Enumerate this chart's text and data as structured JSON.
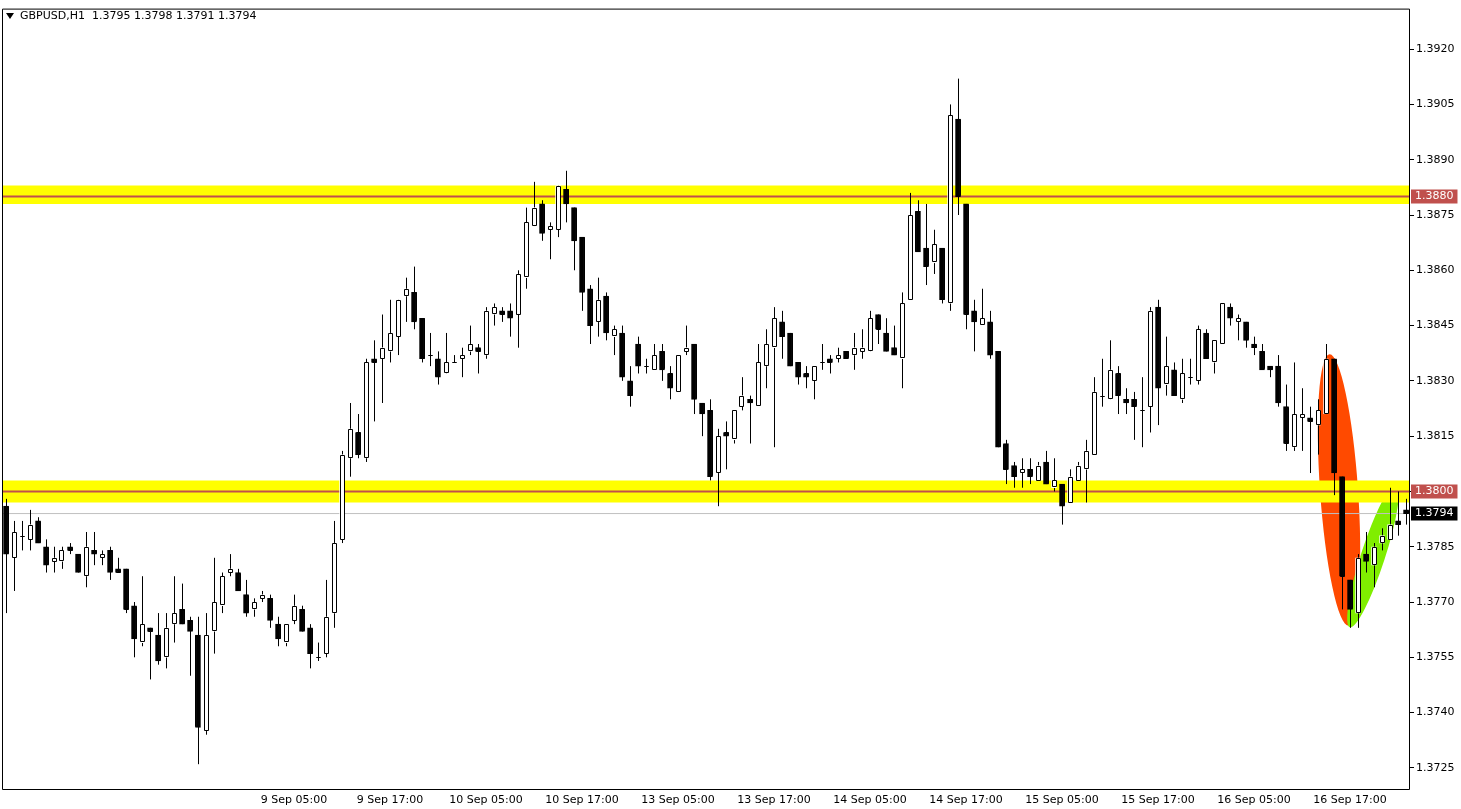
{
  "chart_data": {
    "type": "candlestick",
    "title": "GBPUSD,H1  1.3795 1.3798 1.3791 1.3794",
    "color": "#000000",
    "categories": [
      null,
      null,
      null,
      null,
      null,
      null,
      null,
      null,
      null,
      null,
      null,
      null,
      null,
      null,
      null,
      null,
      null,
      null,
      null,
      null,
      null,
      null,
      null,
      null,
      null,
      null,
      null,
      null,
      null,
      null,
      null,
      null,
      null,
      null,
      null,
      null,
      "9 Sep 05:00",
      null,
      null,
      null,
      null,
      null,
      null,
      null,
      null,
      null,
      null,
      null,
      "9 Sep 17:00",
      null,
      null,
      null,
      null,
      null,
      null,
      null,
      null,
      null,
      null,
      null,
      "10 Sep 05:00",
      null,
      null,
      null,
      null,
      null,
      null,
      null,
      null,
      null,
      null,
      null,
      "10 Sep 17:00",
      null,
      null,
      null,
      null,
      null,
      null,
      null,
      null,
      null,
      null,
      null,
      "13 Sep 05:00",
      null,
      null,
      null,
      null,
      null,
      null,
      null,
      null,
      null,
      null,
      null,
      "13 Sep 17:00",
      null,
      null,
      null,
      null,
      null,
      null,
      null,
      null,
      null,
      null,
      null,
      "14 Sep 05:00",
      null,
      null,
      null,
      null,
      null,
      null,
      null,
      null,
      null,
      null,
      null,
      "14 Sep 17:00",
      null,
      null,
      null,
      null,
      null,
      null,
      null,
      null,
      null,
      null,
      null,
      "15 Sep 05:00",
      null,
      null,
      null,
      null,
      null,
      null,
      null,
      null,
      null,
      null,
      null,
      "15 Sep 17:00",
      null,
      null,
      null,
      null,
      null,
      null,
      null,
      null,
      null,
      null,
      null,
      "16 Sep 05:00",
      null,
      null,
      null,
      null,
      null,
      null,
      null,
      null,
      null,
      null,
      null,
      "16 Sep 17:00",
      null,
      null,
      null,
      null,
      null,
      null,
      null
    ],
    "ohlc": [
      [
        1.3796,
        1.3798,
        1.3767,
        1.3783
      ],
      [
        1.3782,
        1.3792,
        1.3773,
        1.3789
      ],
      [
        1.3788,
        1.3792,
        1.3784,
        1.3788
      ],
      [
        1.3787,
        1.3795,
        1.3784,
        1.3791
      ],
      [
        1.3792,
        1.3793,
        1.3786,
        1.3786
      ],
      [
        1.3785,
        1.3787,
        1.3778,
        1.378
      ],
      [
        1.3781,
        1.3785,
        1.3778,
        1.3782
      ],
      [
        1.3781,
        1.3785,
        1.3779,
        1.3784
      ],
      [
        1.3785,
        1.3786,
        1.3783,
        1.3784
      ],
      [
        1.3783,
        1.3783,
        1.3778,
        1.3778
      ],
      [
        1.3777,
        1.3789,
        1.3774,
        1.3785
      ],
      [
        1.3784,
        1.3789,
        1.378,
        1.3783
      ],
      [
        1.3782,
        1.3784,
        1.378,
        1.3783
      ],
      [
        1.3784,
        1.3785,
        1.3776,
        1.3778
      ],
      [
        1.3779,
        1.3782,
        1.3778,
        1.3778
      ],
      [
        1.3779,
        1.3779,
        1.3767,
        1.3768
      ],
      [
        1.3769,
        1.377,
        1.3755,
        1.376
      ],
      [
        1.3759,
        1.3777,
        1.3758,
        1.3764
      ],
      [
        1.3763,
        1.3763,
        1.3749,
        1.3762
      ],
      [
        1.3761,
        1.3767,
        1.3753,
        1.3754
      ],
      [
        1.3755,
        1.3767,
        1.3752,
        1.3763
      ],
      [
        1.3764,
        1.3777,
        1.3759,
        1.3767
      ],
      [
        1.3768,
        1.3775,
        1.3764,
        1.3764
      ],
      [
        1.3765,
        1.3766,
        1.375,
        1.3762
      ],
      [
        1.3761,
        1.3766,
        1.3726,
        1.3736
      ],
      [
        1.3735,
        1.3767,
        1.3734,
        1.3761
      ],
      [
        1.3762,
        1.3782,
        1.3756,
        1.377
      ],
      [
        1.3769,
        1.3778,
        1.3767,
        1.3777
      ],
      [
        1.3778,
        1.3783,
        1.3777,
        1.3779
      ],
      [
        1.3778,
        1.3779,
        1.3773,
        1.3773
      ],
      [
        1.3772,
        1.3776,
        1.3766,
        1.3767
      ],
      [
        1.3768,
        1.3771,
        1.3766,
        1.377
      ],
      [
        1.3771,
        1.3773,
        1.377,
        1.3772
      ],
      [
        1.3771,
        1.3772,
        1.3763,
        1.3765
      ],
      [
        1.3764,
        1.3766,
        1.3758,
        1.376
      ],
      [
        1.3759,
        1.3764,
        1.3758,
        1.3764
      ],
      [
        1.3765,
        1.3772,
        1.3764,
        1.3769
      ],
      [
        1.3768,
        1.3769,
        1.3762,
        1.3762
      ],
      [
        1.3763,
        1.3764,
        1.3752,
        1.3756
      ],
      [
        1.3755,
        1.3759,
        1.3754,
        1.3755
      ],
      [
        1.3756,
        1.3776,
        1.3755,
        1.3766
      ],
      [
        1.3767,
        1.3792,
        1.3763,
        1.3786
      ],
      [
        1.3787,
        1.3811,
        1.3786,
        1.381
      ],
      [
        1.3809,
        1.3824,
        1.3804,
        1.3817
      ],
      [
        1.3816,
        1.3821,
        1.3809,
        1.381
      ],
      [
        1.3809,
        1.3836,
        1.3808,
        1.3835
      ],
      [
        1.3836,
        1.3841,
        1.3819,
        1.3835
      ],
      [
        1.3836,
        1.3848,
        1.3824,
        1.3839
      ],
      [
        1.3838,
        1.3852,
        1.3835,
        1.3843
      ],
      [
        1.3842,
        1.3852,
        1.3837,
        1.3852
      ],
      [
        1.3853,
        1.3858,
        1.3846,
        1.3855
      ],
      [
        1.3854,
        1.3861,
        1.3844,
        1.3846
      ],
      [
        1.3847,
        1.3847,
        1.3835,
        1.3836
      ],
      [
        1.3837,
        1.3843,
        1.3834,
        1.3837
      ],
      [
        1.3836,
        1.3838,
        1.3829,
        1.3831
      ],
      [
        1.3832,
        1.3843,
        1.3832,
        1.3835
      ],
      [
        1.3835,
        1.3837,
        1.3835,
        1.3835
      ],
      [
        1.3836,
        1.3839,
        1.3831,
        1.3837
      ],
      [
        1.3838,
        1.3845,
        1.3837,
        1.384
      ],
      [
        1.3839,
        1.384,
        1.3832,
        1.3838
      ],
      [
        1.3837,
        1.385,
        1.3836,
        1.3849
      ],
      [
        1.3848,
        1.3851,
        1.3845,
        1.385
      ],
      [
        1.3849,
        1.385,
        1.3846,
        1.3848
      ],
      [
        1.3849,
        1.3851,
        1.3842,
        1.3847
      ],
      [
        1.3848,
        1.386,
        1.3839,
        1.3859
      ],
      [
        1.3858,
        1.3877,
        1.3855,
        1.3873
      ],
      [
        1.3872,
        1.3884,
        1.3872,
        1.3877
      ],
      [
        1.3878,
        1.3879,
        1.3868,
        1.387
      ],
      [
        1.3871,
        1.3873,
        1.3863,
        1.3872
      ],
      [
        1.3871,
        1.3883,
        1.3869,
        1.3883
      ],
      [
        1.3882,
        1.3887,
        1.3873,
        1.3878
      ],
      [
        1.3877,
        1.3877,
        1.386,
        1.3868
      ],
      [
        1.3869,
        1.3869,
        1.3849,
        1.3854
      ],
      [
        1.3855,
        1.3856,
        1.384,
        1.3845
      ],
      [
        1.3846,
        1.3858,
        1.3842,
        1.3852
      ],
      [
        1.3853,
        1.3854,
        1.3841,
        1.3843
      ],
      [
        1.3842,
        1.3845,
        1.3837,
        1.3844
      ],
      [
        1.3843,
        1.3845,
        1.383,
        1.3831
      ],
      [
        1.383,
        1.3834,
        1.3823,
        1.3826
      ],
      [
        1.384,
        1.3842,
        1.3832,
        1.3834
      ],
      [
        1.3834,
        1.3836,
        1.3832,
        1.3834
      ],
      [
        1.3833,
        1.384,
        1.3833,
        1.3837
      ],
      [
        1.3838,
        1.384,
        1.383,
        1.3833
      ],
      [
        1.3832,
        1.3834,
        1.3825,
        1.3828
      ],
      [
        1.3827,
        1.3837,
        1.3827,
        1.3837
      ],
      [
        1.3838,
        1.3845,
        1.3837,
        1.3839
      ],
      [
        1.384,
        1.384,
        1.3821,
        1.3825
      ],
      [
        1.3824,
        1.3824,
        1.3815,
        1.3821
      ],
      [
        1.3822,
        1.3825,
        1.3803,
        1.3804
      ],
      [
        1.3805,
        1.3817,
        1.3796,
        1.3815
      ],
      [
        1.3816,
        1.3819,
        1.3806,
        1.3815
      ],
      [
        1.3814,
        1.3822,
        1.3813,
        1.3822
      ],
      [
        1.3823,
        1.3831,
        1.3822,
        1.3826
      ],
      [
        1.3825,
        1.3826,
        1.3813,
        1.3824
      ],
      [
        1.3823,
        1.384,
        1.3823,
        1.3835
      ],
      [
        1.3834,
        1.3844,
        1.3828,
        1.384
      ],
      [
        1.3839,
        1.385,
        1.3812,
        1.3847
      ],
      [
        1.3846,
        1.3849,
        1.3836,
        1.3842
      ],
      [
        1.3843,
        1.3843,
        1.3834,
        1.3834
      ],
      [
        1.3835,
        1.3835,
        1.3829,
        1.3831
      ],
      [
        1.3832,
        1.3834,
        1.3828,
        1.3831
      ],
      [
        1.383,
        1.3834,
        1.3825,
        1.3834
      ],
      [
        1.3835,
        1.384,
        1.3833,
        1.3835
      ],
      [
        1.3836,
        1.3837,
        1.3832,
        1.3835
      ],
      [
        1.3836,
        1.3839,
        1.3835,
        1.3837
      ],
      [
        1.3838,
        1.3838,
        1.3836,
        1.3836
      ],
      [
        1.3837,
        1.3843,
        1.3833,
        1.3839
      ],
      [
        1.3838,
        1.3844,
        1.3836,
        1.3839
      ],
      [
        1.3838,
        1.3849,
        1.3838,
        1.3847
      ],
      [
        1.3848,
        1.3848,
        1.384,
        1.3844
      ],
      [
        1.3843,
        1.3847,
        1.3838,
        1.3838
      ],
      [
        1.3839,
        1.3845,
        1.3837,
        1.3837
      ],
      [
        1.3836,
        1.3854,
        1.3828,
        1.3851
      ],
      [
        1.3852,
        1.3881,
        1.3852,
        1.3875
      ],
      [
        1.3876,
        1.3879,
        1.3865,
        1.3865
      ],
      [
        1.3866,
        1.3878,
        1.3856,
        1.3861
      ],
      [
        1.3862,
        1.3871,
        1.3859,
        1.3867
      ],
      [
        1.3866,
        1.3866,
        1.3851,
        1.3852
      ],
      [
        1.3851,
        1.3905,
        1.3849,
        1.3902
      ],
      [
        1.3901,
        1.3912,
        1.3875,
        1.388
      ],
      [
        1.3878,
        1.3878,
        1.3844,
        1.3848
      ],
      [
        1.3849,
        1.3852,
        1.3838,
        1.3846
      ],
      [
        1.3845,
        1.3855,
        1.3845,
        1.3847
      ],
      [
        1.3846,
        1.3849,
        1.3836,
        1.3837
      ],
      [
        1.3838,
        1.3838,
        1.3812,
        1.3812
      ],
      [
        1.3813,
        1.3814,
        1.3802,
        1.3806
      ],
      [
        1.3807,
        1.3808,
        1.3801,
        1.3804
      ],
      [
        1.3805,
        1.3809,
        1.3801,
        1.3806
      ],
      [
        1.3806,
        1.3809,
        1.3802,
        1.3804
      ],
      [
        1.3803,
        1.3808,
        1.3803,
        1.3807
      ],
      [
        1.3808,
        1.3811,
        1.3802,
        1.3802
      ],
      [
        1.3801,
        1.3809,
        1.38,
        1.3803
      ],
      [
        1.3802,
        1.3802,
        1.3791,
        1.3796
      ],
      [
        1.3797,
        1.3806,
        1.3797,
        1.3804
      ],
      [
        1.3803,
        1.3808,
        1.3803,
        1.3807
      ],
      [
        1.3806,
        1.3814,
        1.3797,
        1.3811
      ],
      [
        1.381,
        1.3831,
        1.381,
        1.3827
      ],
      [
        1.3826,
        1.3836,
        1.3823,
        1.3826
      ],
      [
        1.3825,
        1.3841,
        1.3825,
        1.3833
      ],
      [
        1.3832,
        1.3834,
        1.3821,
        1.3826
      ],
      [
        1.3825,
        1.3828,
        1.3821,
        1.3824
      ],
      [
        1.3825,
        1.3827,
        1.3814,
        1.3823
      ],
      [
        1.3822,
        1.3831,
        1.3812,
        1.3822
      ],
      [
        1.3823,
        1.385,
        1.3816,
        1.3849
      ],
      [
        1.385,
        1.3852,
        1.3818,
        1.3828
      ],
      [
        1.3829,
        1.3842,
        1.3826,
        1.3834
      ],
      [
        1.3833,
        1.3835,
        1.3826,
        1.3826
      ],
      [
        1.3825,
        1.3836,
        1.3824,
        1.3832
      ],
      [
        1.3831,
        1.3836,
        1.3829,
        1.3831
      ],
      [
        1.383,
        1.3845,
        1.3829,
        1.3844
      ],
      [
        1.3843,
        1.3844,
        1.3836,
        1.3836
      ],
      [
        1.3835,
        1.3841,
        1.3832,
        1.3841
      ],
      [
        1.384,
        1.3851,
        1.384,
        1.3851
      ],
      [
        1.385,
        1.3851,
        1.3845,
        1.3847
      ],
      [
        1.3846,
        1.3848,
        1.3841,
        1.3847
      ],
      [
        1.3846,
        1.3846,
        1.3839,
        1.3841
      ],
      [
        1.384,
        1.3842,
        1.3837,
        1.3839
      ],
      [
        1.3838,
        1.384,
        1.3833,
        1.3833
      ],
      [
        1.3834,
        1.3834,
        1.3831,
        1.3833
      ],
      [
        1.3834,
        1.3837,
        1.3823,
        1.3824
      ],
      [
        1.3823,
        1.3829,
        1.3811,
        1.3813
      ],
      [
        1.3812,
        1.3835,
        1.3811,
        1.3821
      ],
      [
        1.382,
        1.3828,
        1.3811,
        1.3821
      ],
      [
        1.382,
        1.3823,
        1.3805,
        1.3819
      ],
      [
        1.3818,
        1.3825,
        1.381,
        1.3822
      ],
      [
        1.3821,
        1.384,
        1.3821,
        1.3836
      ],
      [
        1.3836,
        1.3836,
        1.3799,
        1.3805
      ],
      [
        1.3804,
        1.3804,
        1.3768,
        1.3777
      ],
      [
        1.3776,
        1.3776,
        1.3763,
        1.3768
      ],
      [
        1.3767,
        1.3783,
        1.3763,
        1.3782
      ],
      [
        1.3783,
        1.3789,
        1.3778,
        1.3781
      ],
      [
        1.378,
        1.3786,
        1.3774,
        1.3785
      ],
      [
        1.3786,
        1.379,
        1.3784,
        1.3788
      ],
      [
        1.3787,
        1.3801,
        1.3787,
        1.3791
      ],
      [
        1.3792,
        1.38,
        1.3788,
        1.3791
      ],
      [
        1.3795,
        1.3798,
        1.3791,
        1.3794
      ]
    ],
    "ylim": [
      1.3719,
      1.3931
    ],
    "yticks": [
      {
        "value": 1.3725,
        "label": "1.3725"
      },
      {
        "value": 1.374,
        "label": "1.3740"
      },
      {
        "value": 1.3755,
        "label": "1.3755"
      },
      {
        "value": 1.377,
        "label": "1.3770"
      },
      {
        "value": 1.3785,
        "label": "1.3785"
      },
      {
        "value": 1.38,
        "label": null
      },
      {
        "value": 1.3815,
        "label": "1.3815"
      },
      {
        "value": 1.383,
        "label": "1.3830"
      },
      {
        "value": 1.3845,
        "label": "1.3845"
      },
      {
        "value": 1.386,
        "label": "1.3860"
      },
      {
        "value": 1.3875,
        "label": "1.3875"
      },
      {
        "value": 1.389,
        "label": "1.3890"
      },
      {
        "value": 1.3905,
        "label": "1.3905"
      },
      {
        "value": 1.392,
        "label": "1.3920"
      }
    ],
    "bands": [
      {
        "axis": "y",
        "from": 1.3878,
        "to": 1.3883,
        "color": "#ffff00"
      },
      {
        "axis": "y",
        "from": 1.3797,
        "to": 1.3803,
        "color": "#ffff00"
      }
    ],
    "ref_lines": [
      {
        "axis": "y",
        "value": 1.388,
        "label": "1.3880",
        "color": "#c0504d"
      },
      {
        "axis": "y",
        "value": 1.38,
        "label": "1.3800",
        "color": "#c0504d"
      },
      {
        "axis": "y",
        "value": 1.3794,
        "label": "1.3794",
        "color": "#c0c0c0"
      }
    ],
    "colors": [
      "#000000",
      "#ffffff",
      "#ffffff",
      "#ffffff",
      "#000000",
      "#000000",
      "#ffffff",
      "#ffffff",
      "#000000",
      "#000000",
      "#ffffff",
      "#000000",
      "#ffffff",
      "#000000",
      "#000000",
      "#000000",
      "#000000",
      "#ffffff",
      "#000000",
      "#000000",
      "#ffffff",
      "#ffffff",
      "#000000",
      "#000000",
      "#000000",
      "#ffffff",
      "#ffffff",
      "#ffffff",
      "#ffffff",
      "#000000",
      "#000000",
      "#ffffff",
      "#ffffff",
      "#000000",
      "#000000",
      "#ffffff",
      "#ffffff",
      "#000000",
      "#000000",
      "#ffffff",
      "#ffffff",
      "#ffffff",
      "#ffffff",
      "#ffffff",
      "#000000",
      "#ffffff",
      "#000000",
      "#ffffff",
      "#ffffff",
      "#ffffff",
      "#ffffff",
      "#000000",
      "#000000",
      "#ffffff",
      "#000000",
      "#ffffff",
      "#ffffff",
      "#ffffff",
      "#ffffff",
      "#000000",
      "#ffffff",
      "#ffffff",
      "#000000",
      "#000000",
      "#ffffff",
      "#ffffff",
      "#ffffff",
      "#000000",
      "#ffffff",
      "#ffffff",
      "#000000",
      "#000000",
      "#000000",
      "#000000",
      "#ffffff",
      "#000000",
      "#ffffff",
      "#000000",
      "#000000",
      "#000000",
      "#ffffff",
      "#ffffff",
      "#000000",
      "#000000",
      "#ffffff",
      "#ffffff",
      "#000000",
      "#000000",
      "#000000",
      "#ffffff",
      "#000000",
      "#ffffff",
      "#ffffff",
      "#000000",
      "#ffffff",
      "#ffffff",
      "#ffffff",
      "#000000",
      "#000000",
      "#000000",
      "#000000",
      "#ffffff",
      "#ffffff",
      "#000000",
      "#ffffff",
      "#000000",
      "#ffffff",
      "#ffffff",
      "#ffffff",
      "#000000",
      "#000000",
      "#000000",
      "#ffffff",
      "#ffffff",
      "#000000",
      "#000000",
      "#ffffff",
      "#000000",
      "#ffffff",
      "#000000",
      "#000000",
      "#000000",
      "#ffffff",
      "#000000",
      "#000000",
      "#000000",
      "#000000",
      "#ffffff",
      "#000000",
      "#ffffff",
      "#000000",
      "#ffffff",
      "#000000",
      "#ffffff",
      "#ffffff",
      "#ffffff",
      "#ffffff",
      "#ffffff",
      "#ffffff",
      "#000000",
      "#000000",
      "#000000",
      "#ffffff",
      "#ffffff",
      "#000000",
      "#ffffff",
      "#000000",
      "#ffffff",
      "#ffffff",
      "#ffffff",
      "#000000",
      "#ffffff",
      "#ffffff",
      "#000000",
      "#ffffff",
      "#000000",
      "#000000",
      "#000000",
      "#000000",
      "#000000",
      "#000000",
      "#ffffff",
      "#ffffff",
      "#000000",
      "#ffffff",
      "#ffffff",
      "#000000",
      "#000000",
      "#000000",
      "#ffffff",
      "#000000",
      "#ffffff",
      "#ffffff",
      "#ffffff",
      "#000000",
      "#000000"
    ],
    "legend": false,
    "grid": false
  }
}
